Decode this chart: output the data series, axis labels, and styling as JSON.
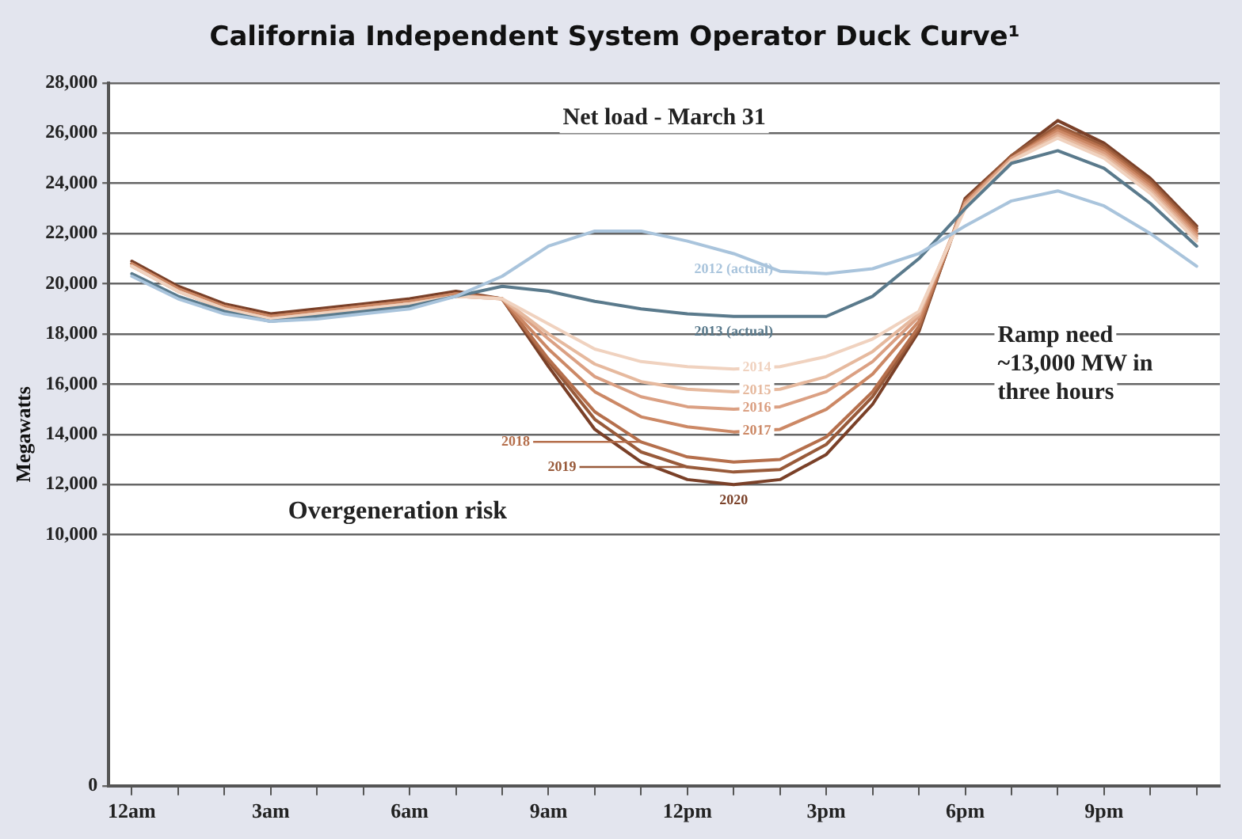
{
  "chart_data": {
    "type": "line",
    "title": "California Independent System Operator Duck Curve¹",
    "ylabel": "Megawatts",
    "categories": [
      "12am",
      null,
      null,
      "3am",
      null,
      null,
      "6am",
      null,
      null,
      "9am",
      null,
      null,
      "12pm",
      null,
      null,
      "3pm",
      null,
      null,
      "6pm",
      null,
      null,
      "9pm",
      null,
      null
    ],
    "ylim": [
      0,
      28000
    ],
    "yticks": [
      {
        "value": 0,
        "label": "0"
      },
      {
        "value": 10000,
        "label": "10,000"
      },
      {
        "value": 12000,
        "label": "12,000"
      },
      {
        "value": 14000,
        "label": "14,000"
      },
      {
        "value": 16000,
        "label": "16,000"
      },
      {
        "value": 18000,
        "label": "18,000"
      },
      {
        "value": 20000,
        "label": "20,000"
      },
      {
        "value": 22000,
        "label": "22,000"
      },
      {
        "value": 24000,
        "label": "24,000"
      },
      {
        "value": 26000,
        "label": "26,000"
      },
      {
        "value": 28000,
        "label": "28,000"
      }
    ],
    "grid": "y",
    "legend": false,
    "marker": "none",
    "line_style": "solid",
    "annotations": [
      "Net load - March 31",
      "Ramp need ~13,000 MW in three hours",
      "Overgeneration risk"
    ],
    "series": [
      {
        "name": "2012 (actual)",
        "color": "#a9c4dc",
        "values": [
          20300,
          19400,
          18800,
          18500,
          18600,
          18800,
          19000,
          19500,
          20300,
          21500,
          22100,
          22100,
          21700,
          21200,
          20500,
          20400,
          20600,
          21200,
          22300,
          23300,
          23700,
          23100,
          22000,
          20700
        ]
      },
      {
        "name": "2013 (actual)",
        "color": "#5a7a8c",
        "values": [
          20400,
          19500,
          18900,
          18500,
          18700,
          18900,
          19100,
          19500,
          19900,
          19700,
          19300,
          19000,
          18800,
          18700,
          18700,
          18700,
          19500,
          21000,
          23000,
          24800,
          25300,
          24600,
          23200,
          21500
        ]
      },
      {
        "name": "2014",
        "color": "#f0d2bf",
        "values": [
          20700,
          19700,
          19000,
          18600,
          18800,
          19000,
          19200,
          19500,
          19400,
          18400,
          17400,
          16900,
          16700,
          16600,
          16700,
          17100,
          17800,
          18900,
          23000,
          24900,
          25800,
          25000,
          23600,
          21700
        ]
      },
      {
        "name": "2015",
        "color": "#e6b99e",
        "values": [
          20700,
          19700,
          19000,
          18600,
          18800,
          19000,
          19200,
          19500,
          19400,
          18000,
          16800,
          16100,
          15800,
          15700,
          15800,
          16300,
          17300,
          18800,
          23100,
          24900,
          25900,
          25100,
          23700,
          21800
        ]
      },
      {
        "name": "2016",
        "color": "#dba083",
        "values": [
          20700,
          19700,
          19000,
          18600,
          18800,
          19000,
          19200,
          19500,
          19400,
          17800,
          16300,
          15500,
          15100,
          15000,
          15100,
          15700,
          16900,
          18700,
          23200,
          25000,
          26000,
          25200,
          23800,
          21900
        ]
      },
      {
        "name": "2017",
        "color": "#cc8865",
        "values": [
          20800,
          19800,
          19100,
          18700,
          18900,
          19100,
          19300,
          19600,
          19400,
          17400,
          15700,
          14700,
          14300,
          14100,
          14200,
          15000,
          16400,
          18500,
          23200,
          25000,
          26100,
          25300,
          23900,
          22000
        ]
      },
      {
        "name": "2018",
        "color": "#b56f4c",
        "values": [
          20800,
          19800,
          19100,
          18700,
          18900,
          19100,
          19300,
          19600,
          19400,
          17000,
          14900,
          13700,
          13100,
          12900,
          13000,
          13900,
          15700,
          18300,
          23300,
          25000,
          26200,
          25400,
          24000,
          22100
        ]
      },
      {
        "name": "2019",
        "color": "#985a3a",
        "values": [
          20800,
          19800,
          19100,
          18700,
          18900,
          19100,
          19300,
          19600,
          19400,
          16900,
          14600,
          13300,
          12700,
          12500,
          12600,
          13600,
          15500,
          18200,
          23300,
          25100,
          26300,
          25500,
          24100,
          22200
        ]
      },
      {
        "name": "2020",
        "color": "#7a4028",
        "values": [
          20900,
          19900,
          19200,
          18800,
          19000,
          19200,
          19400,
          19700,
          19400,
          16700,
          14200,
          12900,
          12200,
          12000,
          12200,
          13200,
          15200,
          18100,
          23400,
          25100,
          26500,
          25600,
          24200,
          22300
        ]
      }
    ]
  }
}
